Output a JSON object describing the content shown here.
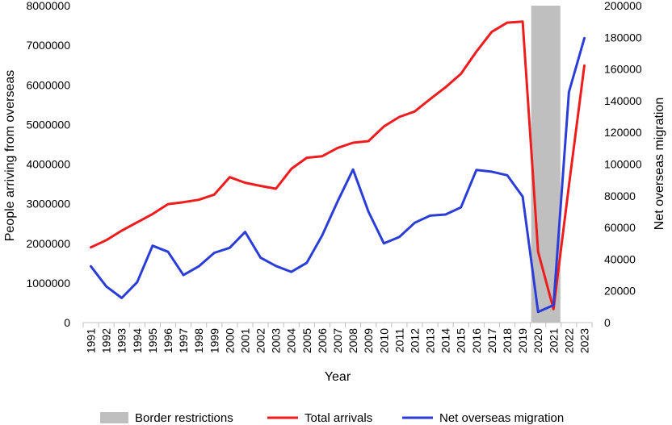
{
  "chart_data": {
    "type": "line",
    "title": "",
    "xlabel": "Year",
    "ylabel_left": "People arriving from overseas",
    "ylabel_right": "Net overseas migration",
    "ylim_left": [
      0,
      8000000
    ],
    "ylim_right": [
      0,
      200000
    ],
    "yticks_left": [
      "0",
      "1000000",
      "2000000",
      "3000000",
      "4000000",
      "5000000",
      "6000000",
      "7000000",
      "8000000"
    ],
    "yticks_right": [
      "0",
      "20000",
      "40000",
      "60000",
      "80000",
      "100000",
      "120000",
      "140000",
      "160000",
      "180000",
      "200000"
    ],
    "categories": [
      "1991",
      "1992",
      "1993",
      "1994",
      "1995",
      "1996",
      "1997",
      "1998",
      "1999",
      "2000",
      "2001",
      "2002",
      "2003",
      "2004",
      "2005",
      "2006",
      "2007",
      "2008",
      "2009",
      "2010",
      "2011",
      "2012",
      "2013",
      "2014",
      "2015",
      "2016",
      "2017",
      "2018",
      "2019",
      "2020",
      "2021",
      "2022",
      "2023"
    ],
    "shaded_region": {
      "name": "Border restrictions",
      "from": "2020",
      "to": "2021",
      "color": "#bfbfbf"
    },
    "series": [
      {
        "name": "Total arrivals",
        "axis": "left",
        "color": "#ee1c1c",
        "values": [
          1900000,
          2080000,
          2320000,
          2530000,
          2740000,
          2990000,
          3040000,
          3100000,
          3230000,
          3670000,
          3530000,
          3450000,
          3380000,
          3880000,
          4160000,
          4200000,
          4410000,
          4540000,
          4580000,
          4950000,
          5190000,
          5330000,
          5640000,
          5940000,
          6280000,
          6840000,
          7340000,
          7570000,
          7600000,
          1790000,
          340000,
          3460000,
          6490000
        ]
      },
      {
        "name": "Net overseas migration",
        "axis": "right",
        "color": "#2a3dd6",
        "values": [
          35500,
          22800,
          15500,
          25500,
          48500,
          44700,
          30000,
          35500,
          44000,
          47200,
          57200,
          41000,
          35700,
          32000,
          37700,
          55000,
          76500,
          96600,
          70000,
          50000,
          54000,
          63000,
          67500,
          68200,
          72700,
          96300,
          95200,
          93000,
          79500,
          6700,
          11000,
          145500,
          179500
        ]
      }
    ],
    "legend": {
      "placement": "bottom",
      "items": [
        "Border restrictions",
        "Total arrivals",
        "Net overseas migration"
      ]
    },
    "grid": false
  }
}
